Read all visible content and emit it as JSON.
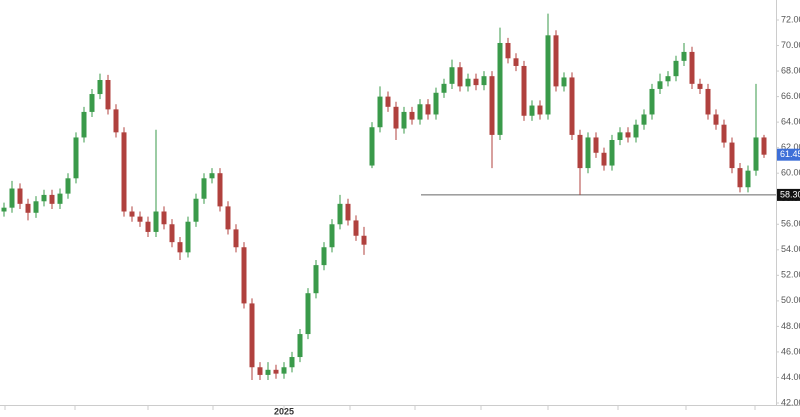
{
  "chart_data": {
    "type": "candlestick",
    "up_color": "#3a9a4a",
    "down_color": "#b0413e",
    "grid": false,
    "ylim": [
      42,
      72
    ],
    "yticks": [
      {
        "value": 42,
        "label": "42.00"
      },
      {
        "value": 44,
        "label": "44.00"
      },
      {
        "value": 46,
        "label": "46.00"
      },
      {
        "value": 48,
        "label": "48.00"
      },
      {
        "value": 50,
        "label": "50.00"
      },
      {
        "value": 52,
        "label": "52.00"
      },
      {
        "value": 54,
        "label": "54.00"
      },
      {
        "value": 56,
        "label": "56.00"
      },
      {
        "value": 58,
        "label": "58.00"
      },
      {
        "value": 60,
        "label": "60.00"
      },
      {
        "value": 62,
        "label": "62.00"
      },
      {
        "value": 64,
        "label": "64.00"
      },
      {
        "value": 66,
        "label": "66.00"
      },
      {
        "value": 68,
        "label": "68.00"
      },
      {
        "value": 70,
        "label": "70.00"
      },
      {
        "value": 72,
        "label": "72.00"
      }
    ],
    "hline": {
      "value": 58.3,
      "label": "58.30"
    },
    "categories": [
      null,
      null,
      null,
      null,
      null,
      null,
      null,
      null,
      null,
      null,
      null,
      null,
      null,
      null,
      null,
      null,
      null,
      null,
      null,
      null,
      null,
      null,
      null,
      null,
      null,
      null,
      null,
      null,
      null,
      null,
      null,
      null,
      null,
      null,
      null,
      "2025",
      null,
      null,
      null,
      null,
      null,
      null,
      null,
      null,
      null,
      null,
      null,
      null,
      null,
      null,
      null,
      null,
      null,
      null,
      null,
      null,
      null,
      null,
      null,
      null,
      null,
      null,
      null,
      null,
      null,
      null,
      null,
      null,
      null,
      null,
      null,
      null,
      null,
      null,
      null,
      null,
      null,
      null,
      null,
      null,
      null,
      null,
      null,
      null,
      null,
      null,
      null,
      null,
      null,
      null,
      null,
      null,
      null,
      null,
      null,
      null
    ],
    "open": [
      57.0,
      57.3,
      58.8,
      57.6,
      56.9,
      57.8,
      58.3,
      57.6,
      58.4,
      59.6,
      62.8,
      64.8,
      66.2,
      67.3,
      65.0,
      63.2,
      57.0,
      56.6,
      56.2,
      55.4,
      57.0,
      56.0,
      54.6,
      53.8,
      56.2,
      58.0,
      59.6,
      60.0,
      57.4,
      55.6,
      54.2,
      49.8,
      44.8,
      44.2,
      44.6,
      44.3,
      44.8,
      45.6,
      47.4,
      50.6,
      52.8,
      54.2,
      56.0,
      57.6,
      56.3,
      55.1,
      60.6,
      63.6,
      66.0,
      65.2,
      63.5,
      64.8,
      64.2,
      65.4,
      64.6,
      66.3,
      67.0,
      68.3,
      66.8,
      67.4,
      66.9,
      67.6,
      63.0,
      70.2,
      69.0,
      68.4,
      64.5,
      65.3,
      64.6,
      70.8,
      66.8,
      67.5,
      63.0,
      60.4,
      62.8,
      61.6,
      60.6,
      62.6,
      63.2,
      62.8,
      63.8,
      64.6,
      66.6,
      67.2,
      67.6,
      68.8,
      69.5,
      67.0,
      66.6,
      64.6,
      63.8,
      62.4,
      60.4,
      58.9,
      60.2,
      62.8
    ],
    "high": [
      57.7,
      59.4,
      59.2,
      58.0,
      58.2,
      58.7,
      58.7,
      58.8,
      60.0,
      63.2,
      65.2,
      66.6,
      67.8,
      67.7,
      65.4,
      63.6,
      57.4,
      57.0,
      56.6,
      63.4,
      57.4,
      56.4,
      55.0,
      56.6,
      58.4,
      60.0,
      60.4,
      60.4,
      57.8,
      56.0,
      54.6,
      50.2,
      45.2,
      45.2,
      45.0,
      45.2,
      46.0,
      47.8,
      51.0,
      53.2,
      54.6,
      56.4,
      58.3,
      58.0,
      56.7,
      55.8,
      64.0,
      66.8,
      66.4,
      65.6,
      65.2,
      65.2,
      65.8,
      65.8,
      66.7,
      67.4,
      68.9,
      68.7,
      67.8,
      67.8,
      68.0,
      68.0,
      71.4,
      70.6,
      69.4,
      68.8,
      65.7,
      65.7,
      72.5,
      71.2,
      67.9,
      67.9,
      63.4,
      63.2,
      63.2,
      62.0,
      63.0,
      63.6,
      63.6,
      64.2,
      65.0,
      67.0,
      67.8,
      68.0,
      69.2,
      70.2,
      69.9,
      67.4,
      67.0,
      65.0,
      64.2,
      62.8,
      60.8,
      60.6,
      67.0,
      63.0
    ],
    "low": [
      56.6,
      56.9,
      57.2,
      56.3,
      56.5,
      57.4,
      57.2,
      57.2,
      58.0,
      59.2,
      62.4,
      64.4,
      65.8,
      64.6,
      62.8,
      56.6,
      56.2,
      55.8,
      55.0,
      55.0,
      55.6,
      54.2,
      53.2,
      53.4,
      55.8,
      57.6,
      59.2,
      57.0,
      55.2,
      53.8,
      49.4,
      43.8,
      43.8,
      43.8,
      43.9,
      43.9,
      44.4,
      45.2,
      47.0,
      50.2,
      52.4,
      53.8,
      55.6,
      55.9,
      54.7,
      53.6,
      60.4,
      63.2,
      64.8,
      62.6,
      63.1,
      63.8,
      63.8,
      64.2,
      64.2,
      65.9,
      66.6,
      66.4,
      66.4,
      66.5,
      66.5,
      60.4,
      62.6,
      68.6,
      68.0,
      64.1,
      64.1,
      64.2,
      64.2,
      66.4,
      66.4,
      62.6,
      58.3,
      60.0,
      61.2,
      60.2,
      60.2,
      62.2,
      62.4,
      62.4,
      63.4,
      64.2,
      66.2,
      66.8,
      67.2,
      68.4,
      66.6,
      66.2,
      64.2,
      63.4,
      62.0,
      60.0,
      58.5,
      58.5,
      59.8,
      61.2
    ],
    "close": [
      57.3,
      58.8,
      57.6,
      56.9,
      57.8,
      58.3,
      57.6,
      58.4,
      59.6,
      62.8,
      64.8,
      66.2,
      67.3,
      65.0,
      63.2,
      57.0,
      56.6,
      56.2,
      55.4,
      57.0,
      56.0,
      54.6,
      53.8,
      56.2,
      58.0,
      59.6,
      60.0,
      57.4,
      55.6,
      54.2,
      49.8,
      44.8,
      44.2,
      44.6,
      44.3,
      44.8,
      45.6,
      47.4,
      50.6,
      52.8,
      54.2,
      56.0,
      57.6,
      56.3,
      55.1,
      54.4,
      63.6,
      66.0,
      65.2,
      63.5,
      64.8,
      64.2,
      65.4,
      64.6,
      66.3,
      67.0,
      68.3,
      66.8,
      67.4,
      66.9,
      67.6,
      63.0,
      70.2,
      69.0,
      68.4,
      64.5,
      65.3,
      64.6,
      70.8,
      66.8,
      67.5,
      63.0,
      60.4,
      62.8,
      61.6,
      60.6,
      62.6,
      63.2,
      62.8,
      63.8,
      64.6,
      66.6,
      67.2,
      67.6,
      68.8,
      69.5,
      67.0,
      66.6,
      64.6,
      63.8,
      62.4,
      60.4,
      58.9,
      60.2,
      62.8,
      61.45
    ]
  }
}
